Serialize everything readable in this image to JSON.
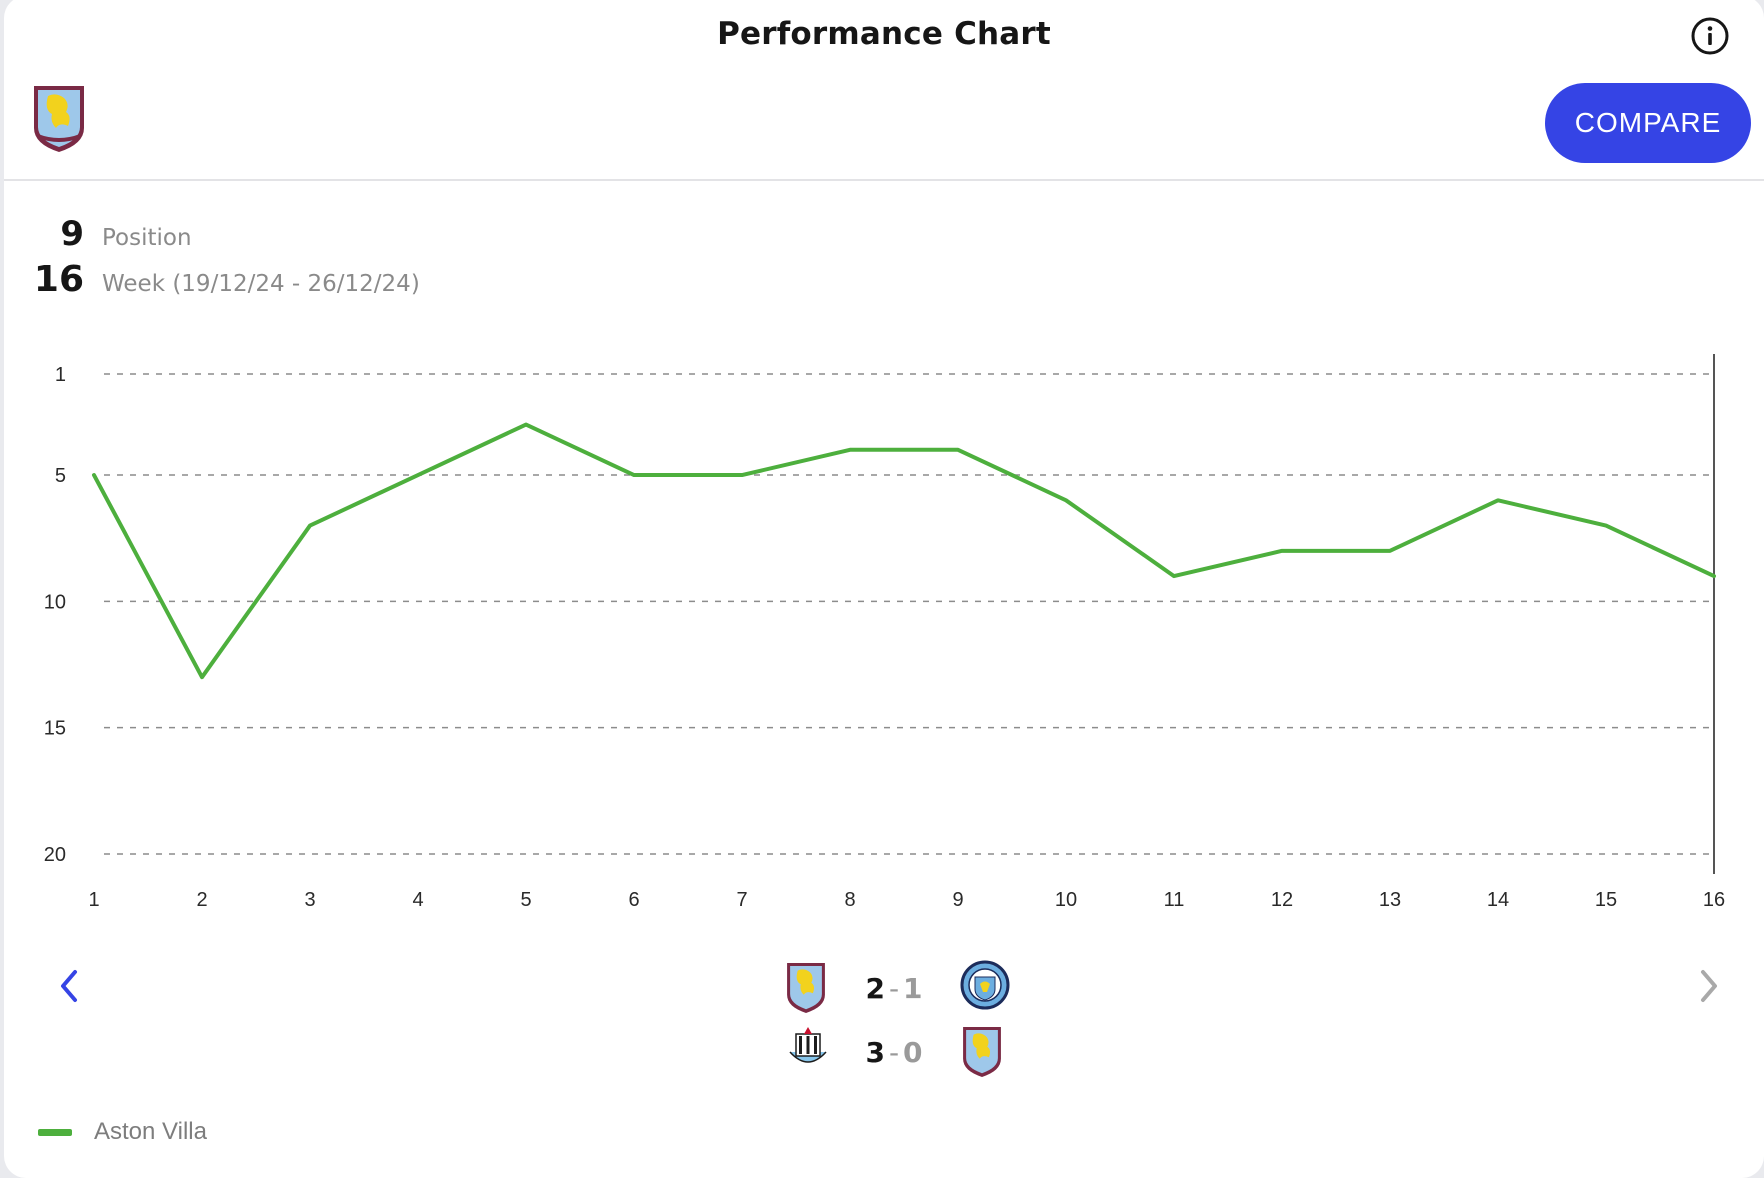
{
  "header": {
    "title": "Performance Chart",
    "info_icon": "info-icon",
    "team_crest": "aston-villa-crest-icon",
    "compare_label": "COMPARE",
    "accent": "#3544e5"
  },
  "stats": {
    "position_value": "9",
    "position_label": "Position",
    "week_value": "16",
    "week_label": "Week (19/12/24 - 26/12/24)"
  },
  "chart_data": {
    "type": "line",
    "title": "",
    "xlabel": "",
    "ylabel": "",
    "x": [
      1,
      2,
      3,
      4,
      5,
      6,
      7,
      8,
      9,
      10,
      11,
      12,
      13,
      14,
      15,
      16
    ],
    "series": [
      {
        "name": "Aston Villa",
        "color": "#4daf3d",
        "values": [
          5,
          13,
          7,
          5,
          3,
          5,
          5,
          4,
          4,
          6,
          9,
          8,
          8,
          6,
          7,
          9
        ]
      }
    ],
    "y_ticks": [
      "1",
      "5",
      "10",
      "15",
      "20"
    ],
    "x_ticks": [
      "1",
      "2",
      "3",
      "4",
      "5",
      "6",
      "7",
      "8",
      "9",
      "10",
      "11",
      "12",
      "13",
      "14",
      "15",
      "16"
    ],
    "ylim": [
      20,
      1
    ],
    "y_inverted": true,
    "grid": "dashed-horizontal",
    "selected_week": 16
  },
  "matches": [
    {
      "home_crest": "aston-villa-crest-icon",
      "home_score": "2",
      "separator": "-",
      "away_score": "1",
      "away_crest": "manchester-city-crest-icon"
    },
    {
      "home_crest": "newcastle-crest-icon",
      "home_score": "3",
      "separator": "-",
      "away_score": "0",
      "away_crest": "aston-villa-crest-icon"
    }
  ],
  "navigation": {
    "prev_icon": "chevron-left-icon",
    "next_icon": "chevron-right-icon"
  },
  "legend": {
    "label": "Aston Villa",
    "color": "#4daf3d"
  }
}
